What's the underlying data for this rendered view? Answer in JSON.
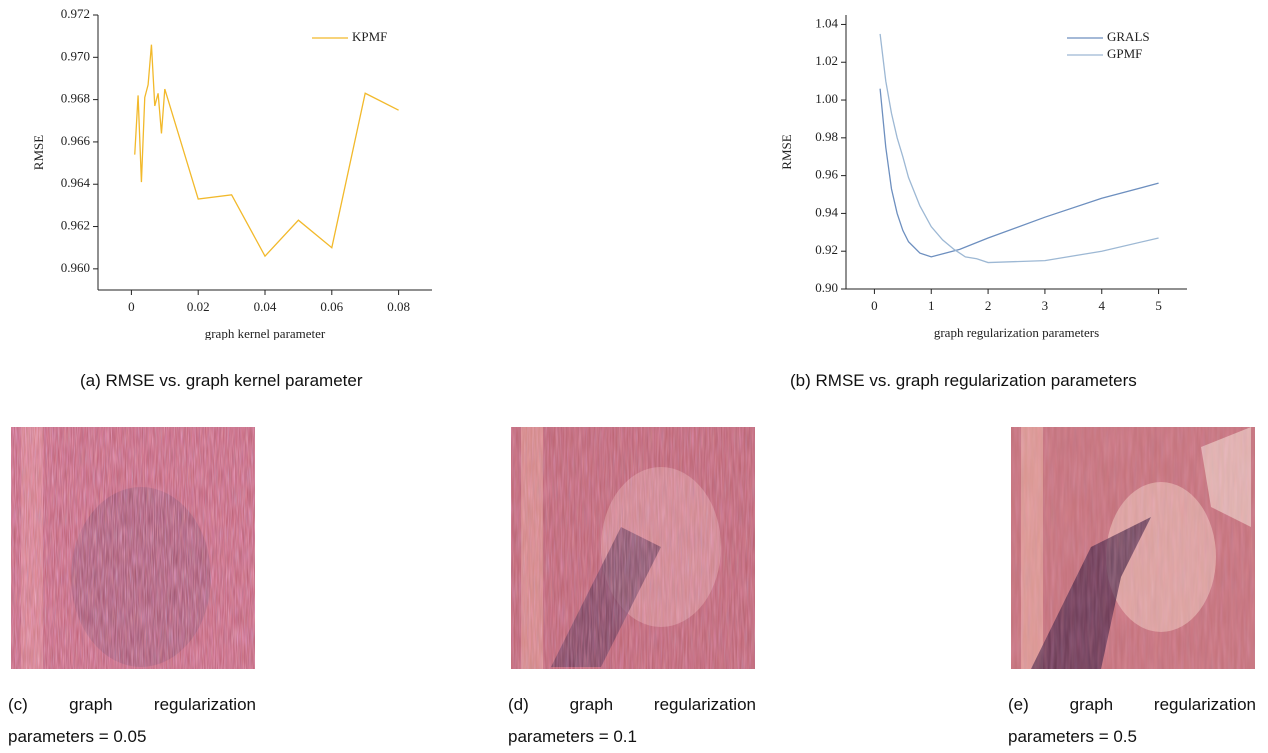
{
  "chart_data": [
    {
      "type": "line",
      "xlabel": "graph kernel parameter",
      "ylabel": "RMSE",
      "x": [
        0.001,
        0.002,
        0.003,
        0.004,
        0.005,
        0.006,
        0.007,
        0.008,
        0.009,
        0.01,
        0.02,
        0.03,
        0.04,
        0.05,
        0.06,
        0.07,
        0.08
      ],
      "series": [
        {
          "name": "KPMF",
          "color": "#f2b92b",
          "values": [
            0.9654,
            0.9682,
            0.9641,
            0.9681,
            0.9687,
            0.9706,
            0.9677,
            0.9683,
            0.9664,
            0.9685,
            0.9633,
            0.9635,
            0.9606,
            0.9623,
            0.961,
            0.9683,
            0.9675
          ]
        }
      ],
      "xlim": [
        -0.01,
        0.09
      ],
      "ylim": [
        0.959,
        0.972
      ],
      "xticks": [
        0,
        0.02,
        0.04,
        0.06,
        0.08
      ],
      "yticks": [
        {
          "value": 0.96,
          "label": "0.960"
        },
        0.962,
        0.964,
        0.966,
        0.968,
        {
          "value": 0.97,
          "label": "0.970"
        },
        0.972
      ],
      "legend": "upper right"
    },
    {
      "type": "line",
      "xlabel": "graph regularization parameters",
      "ylabel": "RMSE",
      "series": [
        {
          "name": "GRALS",
          "color": "#6d8fbf",
          "x": [
            0.1,
            0.2,
            0.3,
            0.4,
            0.5,
            0.6,
            0.8,
            1,
            1.5,
            2,
            3,
            4,
            5
          ],
          "values": [
            1.006,
            0.975,
            0.953,
            0.94,
            0.931,
            0.925,
            0.919,
            0.917,
            0.921,
            0.927,
            0.938,
            0.948,
            0.956
          ]
        },
        {
          "name": "GPMF",
          "color": "#9db8d4",
          "x": [
            0.1,
            0.2,
            0.3,
            0.4,
            0.5,
            0.6,
            0.8,
            1,
            1.2,
            1.4,
            1.6,
            1.8,
            2,
            3,
            4,
            5
          ],
          "values": [
            1.035,
            1.01,
            0.993,
            0.98,
            0.97,
            0.959,
            0.944,
            0.933,
            0.926,
            0.921,
            0.917,
            0.916,
            0.914,
            0.915,
            0.92,
            0.927
          ]
        }
      ],
      "xlim": [
        -0.5,
        5.5
      ],
      "ylim": [
        0.9,
        1.045
      ],
      "xticks": [
        0,
        1,
        2,
        3,
        4,
        5
      ],
      "yticks": [
        {
          "value": 0.9,
          "label": "0.90"
        },
        0.92,
        0.94,
        0.96,
        0.98,
        {
          "value": 1.0,
          "label": "1.00"
        },
        1.02,
        1.04
      ],
      "legend": "upper right"
    }
  ],
  "captions": {
    "a": "(a) RMSE vs. graph kernel parameter",
    "b": "(b) RMSE vs. graph regularization parameters"
  },
  "panels": [
    {
      "line1": "(c) graph regularization",
      "line2": "parameters = 0.05"
    },
    {
      "line1": "(d) graph regularization",
      "line2": "parameters = 0.1"
    },
    {
      "line1": "(e) graph regularization",
      "line2": "parameters = 0.5"
    }
  ]
}
